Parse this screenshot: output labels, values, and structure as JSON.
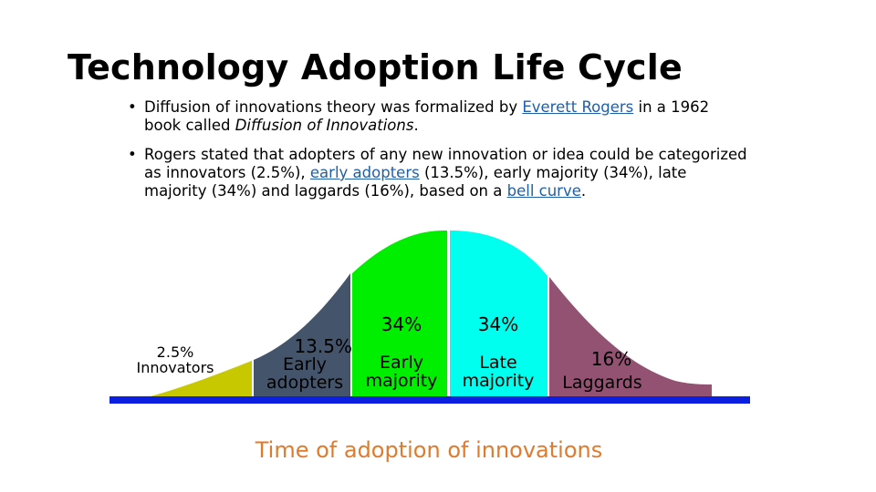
{
  "slide": {
    "title": "Technology Adoption Life Cycle",
    "bullet_glyph": "•",
    "bullets": [
      {
        "pre": "Diffusion of innovations theory was formalized by ",
        "link": "Everett Rogers",
        "mid": " in a 1962 book called ",
        "italic": "Diffusion of Innovations",
        "post": "."
      },
      {
        "pre": "Rogers stated that adopters of any new innovation or idea could be categorized as innovators (2.5%), ",
        "link1": "early adopters",
        "mid": " (13.5%), early majority (34%), late majority (34%) and laggards (16%), based on a ",
        "link2": "bell curve",
        "post": "."
      }
    ],
    "segments": [
      {
        "pct": "2.5%",
        "name": "Innovators",
        "share": 2.5,
        "color": "#c8c800"
      },
      {
        "pct": "13.5%",
        "name_line1": "Early",
        "name_line2": "adopters",
        "share": 13.5,
        "color": "#44546a"
      },
      {
        "pct": "34%",
        "name_line1": "Early",
        "name_line2": "majority",
        "share": 34,
        "color": "#00ee00"
      },
      {
        "pct": "34%",
        "name_line1": "Late",
        "name_line2": "majority",
        "share": 34,
        "color": "#00ffee"
      },
      {
        "pct": "16%",
        "name": "Laggards",
        "share": 16,
        "color": "#935272"
      }
    ],
    "axis_color": "#0a1fe0",
    "axis_caption": "Time of adoption of innovations"
  }
}
